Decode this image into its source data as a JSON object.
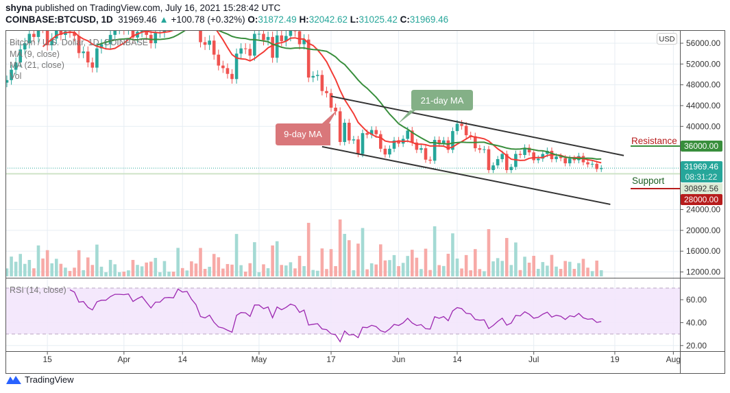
{
  "header": {
    "author": "shyna",
    "published": "published on TradingView.com, July 16, 2021 15:28:42 UTC",
    "symbol": "COINBASE:BTCUSD, 1D",
    "last": "31969.46",
    "change": "+100.78 (+0.32%)",
    "o_label": "O:",
    "o": "31872.49",
    "h_label": "H:",
    "h": "32042.62",
    "l_label": "L:",
    "l": "31025.42",
    "c_label": "C:",
    "c": "31969.46"
  },
  "legend": {
    "title": "Bitcoin / U.S. Dollar, 1D, COINBASE",
    "ma9": "MA (9, close)",
    "ma21": "MA (21, close)",
    "vol": "Vol",
    "rsi": "RSI (14, close)"
  },
  "currency_button": "USD",
  "price_axis": [
    "56000.00",
    "52000.00",
    "48000.00",
    "44000.00",
    "40000.00",
    "24000.00",
    "20000.00",
    "16000.00",
    "12000.00"
  ],
  "price_axis_values": [
    56000,
    52000,
    48000,
    44000,
    40000,
    24000,
    20000,
    16000,
    12000
  ],
  "rsi_axis": [
    "60.00",
    "40.00",
    "20.00"
  ],
  "rsi_axis_values": [
    60,
    40,
    20
  ],
  "time_axis": [
    {
      "label": "15",
      "date": "2021-03-15"
    },
    {
      "label": "Apr",
      "date": "2021-04-01"
    },
    {
      "label": "14",
      "date": "2021-04-14"
    },
    {
      "label": "May",
      "date": "2021-05-01"
    },
    {
      "label": "17",
      "date": "2021-05-17"
    },
    {
      "label": "Jun",
      "date": "2021-06-01"
    },
    {
      "label": "14",
      "date": "2021-06-14"
    },
    {
      "label": "Jul",
      "date": "2021-07-01"
    },
    {
      "label": "19",
      "date": "2021-07-19"
    },
    {
      "label": "Aug",
      "date": "2021-08-01"
    }
  ],
  "price_labels": {
    "resistance": "36000.00",
    "current": "31969.46",
    "countdown": "08:31:22",
    "ref": "30892.56",
    "support": "28000.00"
  },
  "annotations": {
    "resistance": "Resistance",
    "support": "Support",
    "ma9": "9-day MA",
    "ma21": "21-day MA"
  },
  "colors": {
    "up": "#26a69a",
    "down": "#ef5350",
    "ma9": "#f23b35",
    "ma21": "#388e3c",
    "rsi": "#9c27b0",
    "resistance": "#388e3c",
    "support": "#b71c1c"
  },
  "chart_data": {
    "type": "candlestick",
    "interval": "1D",
    "x_start": "2021-03-06",
    "closes": [
      48900,
      50900,
      52300,
      54800,
      56000,
      57800,
      57200,
      61200,
      59000,
      55600,
      56900,
      58900,
      57600,
      58300,
      58100,
      57400,
      54100,
      54400,
      52300,
      51300,
      55000,
      55800,
      55800,
      57600,
      58800,
      58800,
      58700,
      59000,
      57100,
      58200,
      59100,
      57600,
      56000,
      58100,
      58100,
      59800,
      59900,
      59800,
      63600,
      62900,
      63200,
      61400,
      60000,
      56200,
      55700,
      56500,
      53800,
      51700,
      51200,
      50100,
      49100,
      54000,
      55000,
      54900,
      53600,
      57800,
      57800,
      56600,
      57200,
      53200,
      57500,
      56400,
      57400,
      58900,
      58300,
      55800,
      56700,
      49400,
      49700,
      49900,
      46800,
      46400,
      43600,
      42900,
      37000,
      40700,
      37300,
      37500,
      34700,
      38700,
      38400,
      39300,
      38500,
      35700,
      34600,
      35700,
      37300,
      36700,
      37600,
      39200,
      36900,
      35500,
      35800,
      33600,
      33400,
      37400,
      36700,
      37300,
      35500,
      39100,
      40500,
      40100,
      38300,
      38100,
      35800,
      35500,
      35600,
      31600,
      32500,
      33700,
      34700,
      31600,
      32200,
      34700,
      34500,
      35900,
      35000,
      33500,
      33800,
      34700,
      35300,
      33700,
      34200,
      33900,
      32900,
      33800,
      33500,
      34300,
      33100,
      32700,
      32800,
      31800,
      31969.46
    ],
    "moving_averages": [
      9,
      21
    ],
    "rsi_period": 14,
    "rsi_bands": [
      30,
      70
    ],
    "trend_channel": {
      "upper": [
        [
          "2021-05-17",
          45800
        ],
        [
          "2021-07-21",
          34400
        ]
      ],
      "lower": [
        [
          "2021-05-15",
          36100
        ],
        [
          "2021-07-18",
          25000
        ]
      ]
    },
    "levels": {
      "resistance": 36000,
      "support": 28000,
      "reference": 30892.56
    },
    "ylim": [
      11000,
      58500
    ],
    "rsi_ylim": [
      16,
      77
    ],
    "grid": true
  }
}
